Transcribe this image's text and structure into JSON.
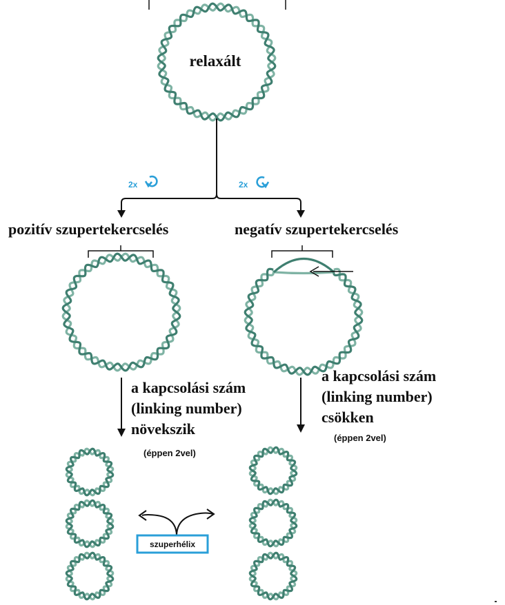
{
  "labels": {
    "relaxed": "relaxált",
    "positive": "pozitív szupertekercselés",
    "negative": "negatív szupertekercselés",
    "twist_left": "2x",
    "twist_right": "2x",
    "increase_l1": "a kapcsolási szám",
    "increase_l2": "(linking number)",
    "increase_l3": "növekszik",
    "increase_note": "(éppen 2vel)",
    "decrease_l1": "a kapcsolási szám",
    "decrease_l2": "(linking number)",
    "decrease_l3": "csökken",
    "decrease_note": "(éppen 2vel)",
    "superhelix": "szuperhélix"
  },
  "colors": {
    "strand_dark": "#3f7f70",
    "strand_light": "#7fb3a4",
    "accent_blue": "#2a9fd8",
    "line": "#111111"
  },
  "icons": {
    "twist_left": "clockwise-twist-icon",
    "twist_right": "counterclockwise-twist-icon"
  }
}
